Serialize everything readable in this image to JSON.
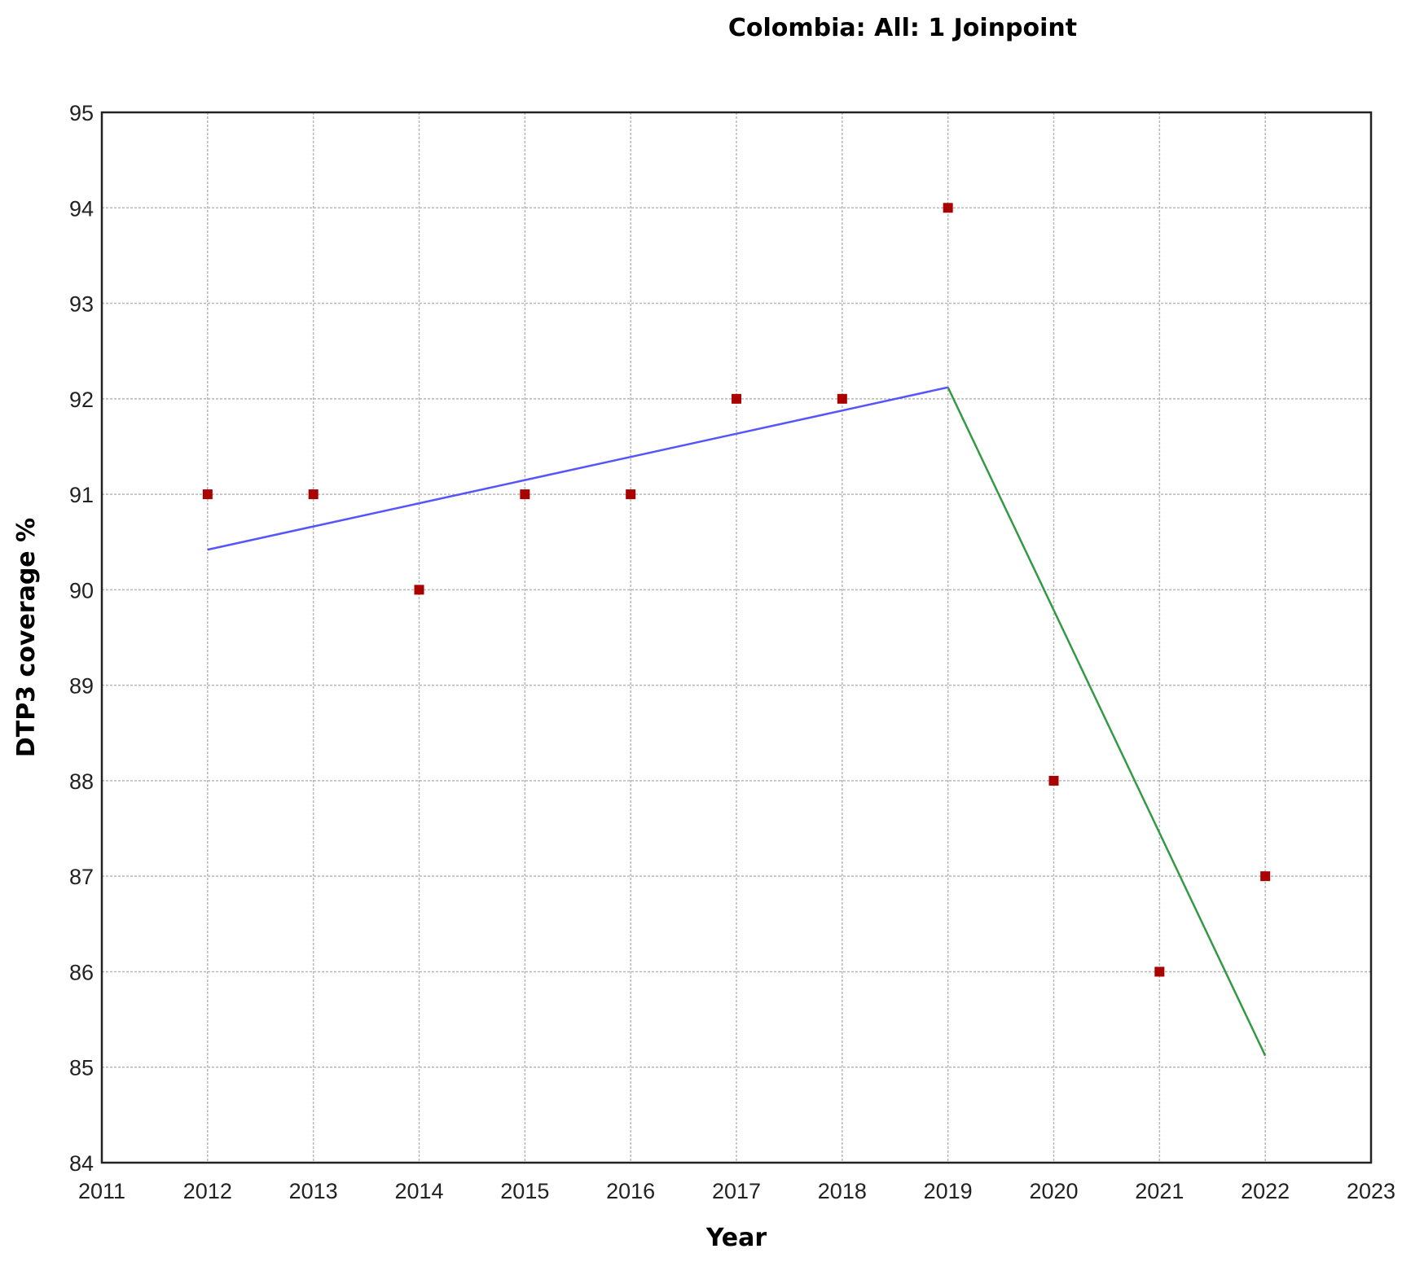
{
  "chart_data": {
    "type": "scatter",
    "title": "Colombia: All: 1 Joinpoint",
    "xlabel": "Year",
    "ylabel": "DTP3 coverage %",
    "xlim": [
      2011,
      2023
    ],
    "ylim": [
      84,
      95
    ],
    "xticks": [
      "2011",
      "2012",
      "2013",
      "2014",
      "2015",
      "2016",
      "2017",
      "2018",
      "2019",
      "2020",
      "2021",
      "2022",
      "2023"
    ],
    "yticks": [
      "84",
      "85",
      "86",
      "87",
      "88",
      "89",
      "90",
      "91",
      "92",
      "93",
      "94",
      "95"
    ],
    "grid": true,
    "observed": {
      "x": [
        2012,
        2013,
        2014,
        2015,
        2016,
        2017,
        2018,
        2019,
        2020,
        2021,
        2022
      ],
      "y": [
        91,
        91,
        90,
        91,
        91,
        92,
        92,
        94,
        88,
        86,
        87
      ],
      "color": "#aa0000",
      "marker": "square"
    },
    "segments": [
      {
        "x": [
          2012,
          2019
        ],
        "y": [
          90.42,
          92.12
        ],
        "color": "#5555ff"
      },
      {
        "x": [
          2019,
          2022
        ],
        "y": [
          92.12,
          85.12
        ],
        "color": "#339944"
      }
    ]
  }
}
